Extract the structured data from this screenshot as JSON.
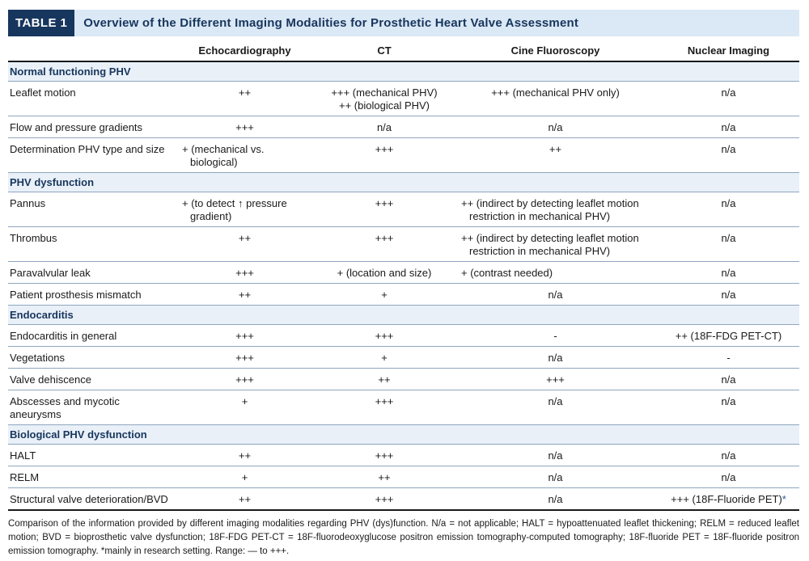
{
  "title": {
    "tag": "TABLE 1",
    "text": "Overview of the Different Imaging Modalities for Prosthetic Heart Valve Assessment"
  },
  "columns": [
    "",
    "Echocardiography",
    "CT",
    "Cine Fluoroscopy",
    "Nuclear Imaging"
  ],
  "sections": [
    {
      "name": "Normal functioning PHV",
      "rows": [
        {
          "label": "Leaflet motion",
          "echo": "++",
          "ct": "+++ (mechanical PHV)\n++ (biological PHV)",
          "cine": "+++ (mechanical PHV only)",
          "nuclear": "n/a"
        },
        {
          "label": "Flow and pressure gradients",
          "echo": "+++",
          "ct": "n/a",
          "cine": "n/a",
          "nuclear": "n/a"
        },
        {
          "label": "Determination PHV type and size",
          "echo": "+ (mechanical vs. biological)",
          "ct": "+++",
          "cine": "++",
          "nuclear": "n/a"
        }
      ]
    },
    {
      "name": "PHV dysfunction",
      "rows": [
        {
          "label": "Pannus",
          "echo": "+ (to detect ↑ pressure gradient)",
          "ct": "+++",
          "cine": "++ (indirect by detecting leaflet motion restriction in mechanical PHV)",
          "nuclear": "n/a"
        },
        {
          "label": "Thrombus",
          "echo": "++",
          "ct": "+++",
          "cine": "++ (indirect by detecting leaflet motion restriction in mechanical PHV)",
          "nuclear": "n/a"
        },
        {
          "label": "Paravalvular leak",
          "echo": "+++",
          "ct": "+ (location and size)",
          "cine": "+ (contrast needed)",
          "nuclear": "n/a"
        },
        {
          "label": "Patient prosthesis mismatch",
          "echo": "++",
          "ct": "+",
          "cine": "n/a",
          "nuclear": "n/a"
        }
      ]
    },
    {
      "name": "Endocarditis",
      "rows": [
        {
          "label": "Endocarditis in general",
          "echo": "+++",
          "ct": "+++",
          "cine": "-",
          "nuclear": "++ (18F-FDG PET-CT)"
        },
        {
          "label": "Vegetations",
          "echo": "+++",
          "ct": "+",
          "cine": "n/a",
          "nuclear": "-"
        },
        {
          "label": "Valve dehiscence",
          "echo": "+++",
          "ct": "++",
          "cine": "+++",
          "nuclear": "n/a"
        },
        {
          "label": "Abscesses and mycotic aneurysms",
          "echo": "+",
          "ct": "+++",
          "cine": "n/a",
          "nuclear": "n/a"
        }
      ]
    },
    {
      "name": "Biological PHV dysfunction",
      "rows": [
        {
          "label": "HALT",
          "echo": "++",
          "ct": "+++",
          "cine": "n/a",
          "nuclear": "n/a"
        },
        {
          "label": "RELM",
          "echo": "+",
          "ct": "++",
          "cine": "n/a",
          "nuclear": "n/a"
        },
        {
          "label": "Structural valve deterioration/BVD",
          "echo": "++",
          "ct": "+++",
          "cine": "n/a",
          "nuclear": "+++ (18F-Fluoride PET)",
          "nuclear_mark": "*"
        }
      ]
    }
  ],
  "footnote": "Comparison of the information provided by different imaging modalities regarding PHV (dys)function. N/a = not applicable; HALT = hypoattenuated leaflet thickening; RELM = reduced leaflet motion; BVD = bioprosthetic valve dysfunction; 18F-FDG PET-CT = 18F-fluorodeoxyglucose positron emission tomography-computed tomography; 18F-fluoride PET = 18F-fluoride positron emission tomography. *mainly in research setting. Range: — to +++.",
  "colors": {
    "navy": "#17365d",
    "title_band": "#dbe8f5",
    "section_band": "#e9f0f8",
    "rule": "#8fa6bf",
    "asterisk": "#2b5a9e"
  }
}
